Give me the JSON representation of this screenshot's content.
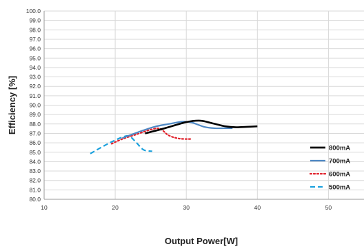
{
  "chart_data": {
    "type": "line",
    "title": "",
    "xlabel": "Output Power[W]",
    "ylabel": "Efficiency [%]",
    "xlim": [
      10,
      55
    ],
    "ylim": [
      80.0,
      100.0
    ],
    "x_ticks": [
      10,
      20,
      30,
      40,
      50
    ],
    "y_ticks": [
      80.0,
      81.0,
      82.0,
      83.0,
      84.0,
      85.0,
      86.0,
      87.0,
      88.0,
      89.0,
      90.0,
      91.0,
      92.0,
      93.0,
      94.0,
      95.0,
      96.0,
      97.0,
      98.0,
      99.0,
      100.0
    ],
    "grid": true,
    "legend_position": "right",
    "series": [
      {
        "name": "800mA",
        "color": "#000000",
        "dash": "solid",
        "x": [
          24.2,
          27.0,
          30.0,
          32.0,
          33.8,
          35.5,
          37.0,
          38.5,
          40.0
        ],
        "y": [
          87.0,
          87.55,
          88.2,
          88.35,
          88.05,
          87.75,
          87.65,
          87.7,
          87.75
        ]
      },
      {
        "name": "700mA",
        "color": "#4e88c4",
        "dash": "solid",
        "x": [
          21.0,
          23.5,
          25.5,
          27.5,
          29.5,
          30.8,
          32.5,
          34.0,
          35.5,
          36.5
        ],
        "y": [
          86.5,
          87.2,
          87.7,
          88.0,
          88.25,
          88.15,
          87.7,
          87.55,
          87.55,
          87.55
        ]
      },
      {
        "name": "600mA",
        "color": "#e0202a",
        "dash": "dotted",
        "x": [
          19.5,
          21.0,
          23.0,
          25.0,
          26.3,
          27.5,
          29.0,
          30.6
        ],
        "y": [
          85.9,
          86.4,
          86.9,
          87.4,
          87.5,
          86.8,
          86.45,
          86.4
        ]
      },
      {
        "name": "500mA",
        "color": "#1ba1dd",
        "dash": "dashed",
        "x": [
          16.5,
          18.0,
          19.5,
          21.0,
          22.0,
          23.0,
          24.0,
          25.2
        ],
        "y": [
          84.85,
          85.5,
          86.1,
          86.6,
          86.7,
          86.0,
          85.25,
          85.1
        ]
      }
    ]
  }
}
